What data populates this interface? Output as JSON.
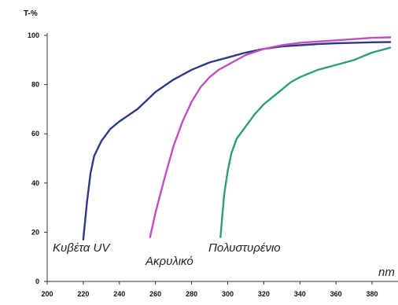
{
  "chart_data": {
    "type": "line",
    "ylabel": "T-%",
    "xlabel": "nm",
    "xlim": [
      200,
      390
    ],
    "ylim": [
      0,
      100
    ],
    "x_ticks": [
      200,
      220,
      240,
      260,
      280,
      300,
      320,
      340,
      360,
      380
    ],
    "y_ticks": [
      0,
      20,
      40,
      60,
      80,
      100
    ],
    "grid": false,
    "series": [
      {
        "name": "Κυβέτα UV",
        "color": "#2e3a87",
        "x": [
          220,
          222,
          224,
          226,
          230,
          235,
          240,
          250,
          260,
          270,
          280,
          290,
          300,
          310,
          320,
          330,
          340,
          350,
          360,
          370,
          380,
          390
        ],
        "y": [
          17,
          32,
          44,
          51,
          57,
          62,
          65,
          70,
          77,
          82,
          86,
          89,
          91,
          93,
          94.5,
          95.5,
          96,
          96.5,
          96.8,
          97,
          97.2,
          97.3
        ]
      },
      {
        "name": "Ακρυλικό",
        "color": "#c04fbf",
        "x": [
          257,
          260,
          265,
          270,
          275,
          280,
          285,
          290,
          295,
          300,
          310,
          320,
          330,
          340,
          350,
          360,
          370,
          380,
          390
        ],
        "y": [
          18,
          28,
          42,
          55,
          65,
          73,
          79,
          83,
          86,
          88,
          92,
          94.5,
          96,
          97,
          97.5,
          98,
          98.5,
          99,
          99.2
        ]
      },
      {
        "name": "Πολυστυρένιο",
        "color": "#2e9e7a",
        "x": [
          296,
          298,
          300,
          302,
          305,
          310,
          315,
          320,
          325,
          330,
          335,
          340,
          350,
          360,
          370,
          380,
          390
        ],
        "y": [
          18,
          35,
          45,
          52,
          58,
          63,
          68,
          72,
          75,
          78,
          81,
          83,
          86,
          88,
          90,
          93,
          95
        ]
      }
    ]
  }
}
